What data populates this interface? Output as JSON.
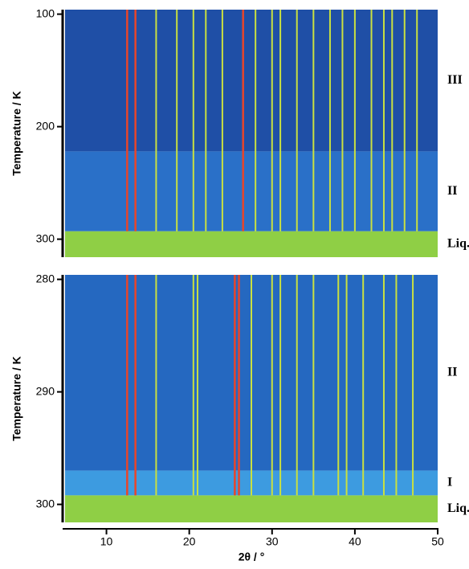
{
  "chart_data": [
    {
      "type": "heatmap",
      "ylabel": "Temperature / K",
      "xlim": [
        5,
        50
      ],
      "ylim": [
        96,
        316
      ],
      "yticks": [
        100,
        200,
        300
      ],
      "phases": [
        {
          "label": "III",
          "from": 96,
          "to": 222,
          "color": "#1f4fa6"
        },
        {
          "label": "II",
          "from": 222,
          "to": 293,
          "color": "#2a70c8"
        },
        {
          "label": "Liq.",
          "from": 293,
          "to": 316,
          "color": "#8fcf45"
        }
      ],
      "peaks": [
        16,
        18.5,
        20.5,
        22,
        24,
        28,
        30,
        31,
        33,
        35,
        37,
        38.5,
        40,
        42,
        43.5,
        44.5,
        46,
        47.5
      ],
      "peak_color": "#c9e040",
      "strong_peaks": [
        12.5,
        13.5,
        26.5
      ],
      "strong_color": "#e8452a"
    },
    {
      "type": "heatmap",
      "ylabel": "Temperature / K",
      "xlabel": "2θ / °",
      "xlim": [
        5,
        50
      ],
      "xticks": [
        10,
        20,
        30,
        40,
        50
      ],
      "ylim": [
        279.6,
        301.6
      ],
      "yticks": [
        280,
        290,
        300
      ],
      "phases": [
        {
          "label": "II",
          "from": 279.6,
          "to": 297,
          "color": "#2568c0"
        },
        {
          "label": "I",
          "from": 297,
          "to": 299.2,
          "color": "#3d9be0"
        },
        {
          "label": "Liq.",
          "from": 299.2,
          "to": 301.6,
          "color": "#8fcf45"
        }
      ],
      "peaks": [
        16,
        20.5,
        21,
        27.5,
        30,
        31,
        33,
        35,
        38,
        39,
        41,
        43.5,
        45,
        47
      ],
      "peak_color": "#c9e040",
      "strong_peaks": [
        12.5,
        13.5,
        25.5,
        26
      ],
      "strong_color": "#e8452a"
    }
  ]
}
